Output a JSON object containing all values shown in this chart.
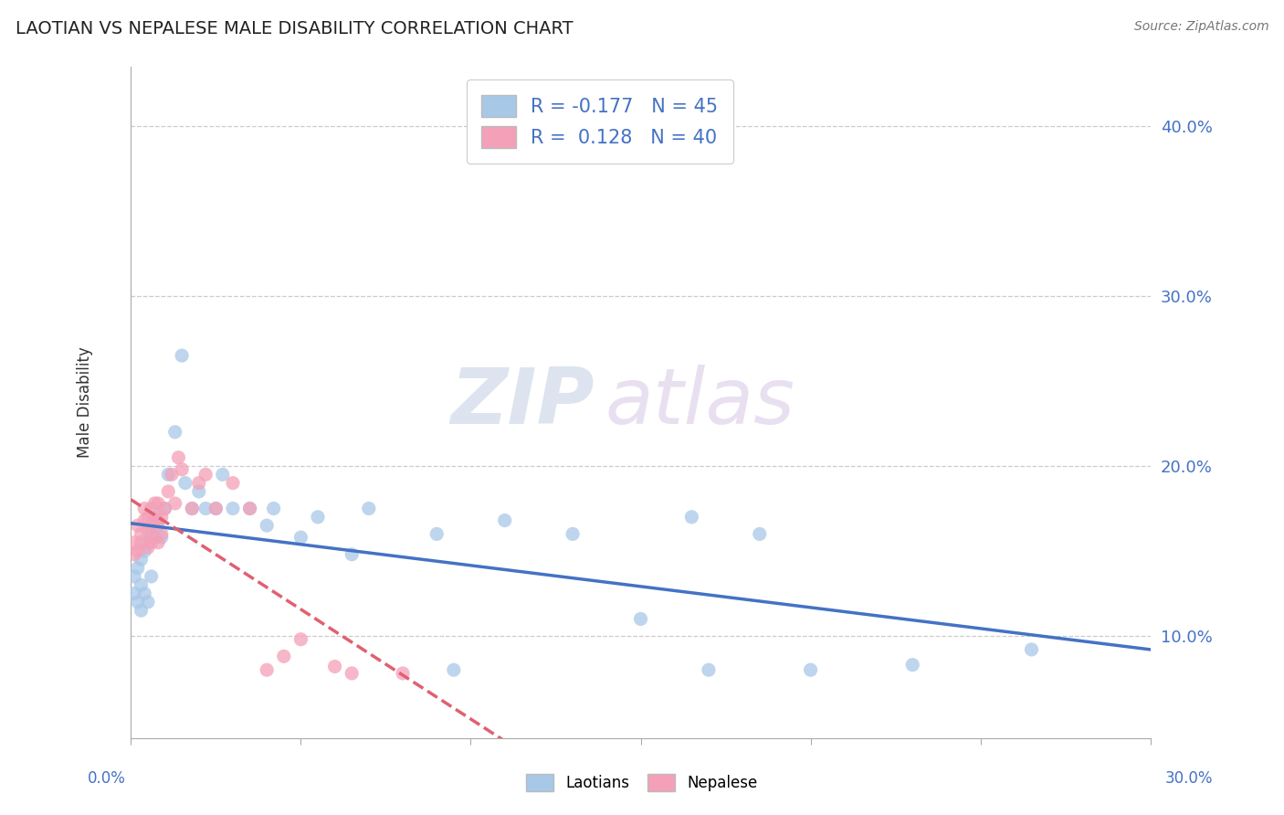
{
  "title": "LAOTIAN VS NEPALESE MALE DISABILITY CORRELATION CHART",
  "source": "Source: ZipAtlas.com",
  "ylabel": "Male Disability",
  "yticks": [
    "10.0%",
    "20.0%",
    "30.0%",
    "40.0%"
  ],
  "ytick_vals": [
    0.1,
    0.2,
    0.3,
    0.4
  ],
  "xlim": [
    0.0,
    0.3
  ],
  "ylim": [
    0.04,
    0.435
  ],
  "laotian_R": -0.177,
  "laotian_N": 45,
  "nepalese_R": 0.128,
  "nepalese_N": 40,
  "laotian_color": "#a8c8e8",
  "nepalese_color": "#f4a0b8",
  "laotian_line_color": "#4472c4",
  "nepalese_line_color": "#e06070",
  "background_color": "#ffffff",
  "watermark_zip": "ZIP",
  "watermark_atlas": "atlas",
  "laotian_x": [
    0.001,
    0.001,
    0.002,
    0.002,
    0.003,
    0.003,
    0.003,
    0.004,
    0.004,
    0.005,
    0.005,
    0.006,
    0.006,
    0.007,
    0.008,
    0.009,
    0.01,
    0.011,
    0.013,
    0.015,
    0.016,
    0.018,
    0.02,
    0.022,
    0.025,
    0.027,
    0.03,
    0.035,
    0.04,
    0.042,
    0.05,
    0.055,
    0.065,
    0.07,
    0.09,
    0.095,
    0.11,
    0.13,
    0.15,
    0.165,
    0.17,
    0.185,
    0.2,
    0.23,
    0.265
  ],
  "laotian_y": [
    0.135,
    0.125,
    0.14,
    0.12,
    0.145,
    0.13,
    0.115,
    0.15,
    0.125,
    0.155,
    0.12,
    0.16,
    0.135,
    0.17,
    0.165,
    0.158,
    0.175,
    0.195,
    0.22,
    0.265,
    0.19,
    0.175,
    0.185,
    0.175,
    0.175,
    0.195,
    0.175,
    0.175,
    0.165,
    0.175,
    0.158,
    0.17,
    0.148,
    0.175,
    0.16,
    0.08,
    0.168,
    0.16,
    0.11,
    0.17,
    0.08,
    0.16,
    0.08,
    0.083,
    0.092
  ],
  "nepalese_x": [
    0.001,
    0.001,
    0.002,
    0.002,
    0.003,
    0.003,
    0.004,
    0.004,
    0.005,
    0.005,
    0.005,
    0.006,
    0.006,
    0.006,
    0.007,
    0.007,
    0.007,
    0.008,
    0.008,
    0.008,
    0.009,
    0.009,
    0.01,
    0.011,
    0.012,
    0.013,
    0.014,
    0.015,
    0.018,
    0.02,
    0.022,
    0.025,
    0.03,
    0.035,
    0.04,
    0.045,
    0.05,
    0.06,
    0.065,
    0.08
  ],
  "nepalese_y": [
    0.148,
    0.155,
    0.15,
    0.165,
    0.155,
    0.16,
    0.168,
    0.175,
    0.152,
    0.162,
    0.17,
    0.155,
    0.165,
    0.175,
    0.158,
    0.168,
    0.178,
    0.155,
    0.168,
    0.178,
    0.16,
    0.17,
    0.175,
    0.185,
    0.195,
    0.178,
    0.205,
    0.198,
    0.175,
    0.19,
    0.195,
    0.175,
    0.19,
    0.175,
    0.08,
    0.088,
    0.098,
    0.082,
    0.078,
    0.078
  ]
}
